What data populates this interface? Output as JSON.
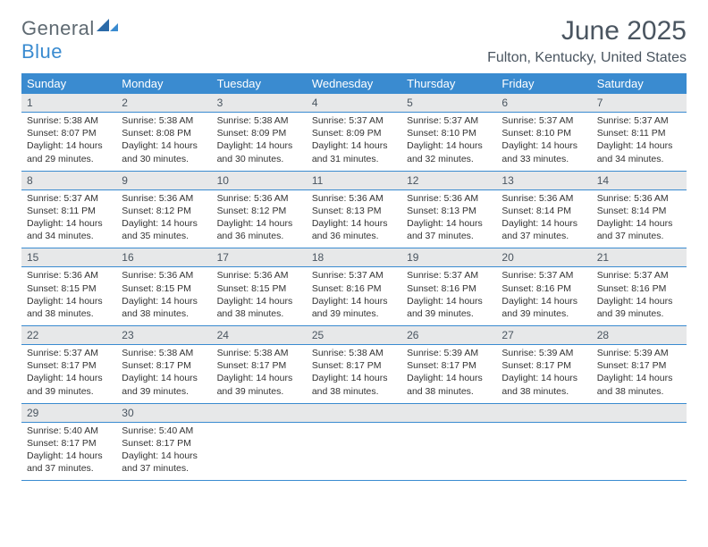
{
  "logo": {
    "word1": "General",
    "word2": "Blue"
  },
  "title": "June 2025",
  "location": "Fulton, Kentucky, United States",
  "colors": {
    "header_bg": "#3a8bd0",
    "header_text": "#ffffff",
    "daynum_bg": "#e7e8e9",
    "border": "#3a8bd0",
    "title_color": "#4a5560",
    "logo_gray": "#5f6a72",
    "logo_blue": "#3a8bd0"
  },
  "weekdays": [
    "Sunday",
    "Monday",
    "Tuesday",
    "Wednesday",
    "Thursday",
    "Friday",
    "Saturday"
  ],
  "weeks": [
    [
      {
        "day": "1",
        "sunrise": "Sunrise: 5:38 AM",
        "sunset": "Sunset: 8:07 PM",
        "daylight": "Daylight: 14 hours and 29 minutes."
      },
      {
        "day": "2",
        "sunrise": "Sunrise: 5:38 AM",
        "sunset": "Sunset: 8:08 PM",
        "daylight": "Daylight: 14 hours and 30 minutes."
      },
      {
        "day": "3",
        "sunrise": "Sunrise: 5:38 AM",
        "sunset": "Sunset: 8:09 PM",
        "daylight": "Daylight: 14 hours and 30 minutes."
      },
      {
        "day": "4",
        "sunrise": "Sunrise: 5:37 AM",
        "sunset": "Sunset: 8:09 PM",
        "daylight": "Daylight: 14 hours and 31 minutes."
      },
      {
        "day": "5",
        "sunrise": "Sunrise: 5:37 AM",
        "sunset": "Sunset: 8:10 PM",
        "daylight": "Daylight: 14 hours and 32 minutes."
      },
      {
        "day": "6",
        "sunrise": "Sunrise: 5:37 AM",
        "sunset": "Sunset: 8:10 PM",
        "daylight": "Daylight: 14 hours and 33 minutes."
      },
      {
        "day": "7",
        "sunrise": "Sunrise: 5:37 AM",
        "sunset": "Sunset: 8:11 PM",
        "daylight": "Daylight: 14 hours and 34 minutes."
      }
    ],
    [
      {
        "day": "8",
        "sunrise": "Sunrise: 5:37 AM",
        "sunset": "Sunset: 8:11 PM",
        "daylight": "Daylight: 14 hours and 34 minutes."
      },
      {
        "day": "9",
        "sunrise": "Sunrise: 5:36 AM",
        "sunset": "Sunset: 8:12 PM",
        "daylight": "Daylight: 14 hours and 35 minutes."
      },
      {
        "day": "10",
        "sunrise": "Sunrise: 5:36 AM",
        "sunset": "Sunset: 8:12 PM",
        "daylight": "Daylight: 14 hours and 36 minutes."
      },
      {
        "day": "11",
        "sunrise": "Sunrise: 5:36 AM",
        "sunset": "Sunset: 8:13 PM",
        "daylight": "Daylight: 14 hours and 36 minutes."
      },
      {
        "day": "12",
        "sunrise": "Sunrise: 5:36 AM",
        "sunset": "Sunset: 8:13 PM",
        "daylight": "Daylight: 14 hours and 37 minutes."
      },
      {
        "day": "13",
        "sunrise": "Sunrise: 5:36 AM",
        "sunset": "Sunset: 8:14 PM",
        "daylight": "Daylight: 14 hours and 37 minutes."
      },
      {
        "day": "14",
        "sunrise": "Sunrise: 5:36 AM",
        "sunset": "Sunset: 8:14 PM",
        "daylight": "Daylight: 14 hours and 37 minutes."
      }
    ],
    [
      {
        "day": "15",
        "sunrise": "Sunrise: 5:36 AM",
        "sunset": "Sunset: 8:15 PM",
        "daylight": "Daylight: 14 hours and 38 minutes."
      },
      {
        "day": "16",
        "sunrise": "Sunrise: 5:36 AM",
        "sunset": "Sunset: 8:15 PM",
        "daylight": "Daylight: 14 hours and 38 minutes."
      },
      {
        "day": "17",
        "sunrise": "Sunrise: 5:36 AM",
        "sunset": "Sunset: 8:15 PM",
        "daylight": "Daylight: 14 hours and 38 minutes."
      },
      {
        "day": "18",
        "sunrise": "Sunrise: 5:37 AM",
        "sunset": "Sunset: 8:16 PM",
        "daylight": "Daylight: 14 hours and 39 minutes."
      },
      {
        "day": "19",
        "sunrise": "Sunrise: 5:37 AM",
        "sunset": "Sunset: 8:16 PM",
        "daylight": "Daylight: 14 hours and 39 minutes."
      },
      {
        "day": "20",
        "sunrise": "Sunrise: 5:37 AM",
        "sunset": "Sunset: 8:16 PM",
        "daylight": "Daylight: 14 hours and 39 minutes."
      },
      {
        "day": "21",
        "sunrise": "Sunrise: 5:37 AM",
        "sunset": "Sunset: 8:16 PM",
        "daylight": "Daylight: 14 hours and 39 minutes."
      }
    ],
    [
      {
        "day": "22",
        "sunrise": "Sunrise: 5:37 AM",
        "sunset": "Sunset: 8:17 PM",
        "daylight": "Daylight: 14 hours and 39 minutes."
      },
      {
        "day": "23",
        "sunrise": "Sunrise: 5:38 AM",
        "sunset": "Sunset: 8:17 PM",
        "daylight": "Daylight: 14 hours and 39 minutes."
      },
      {
        "day": "24",
        "sunrise": "Sunrise: 5:38 AM",
        "sunset": "Sunset: 8:17 PM",
        "daylight": "Daylight: 14 hours and 39 minutes."
      },
      {
        "day": "25",
        "sunrise": "Sunrise: 5:38 AM",
        "sunset": "Sunset: 8:17 PM",
        "daylight": "Daylight: 14 hours and 38 minutes."
      },
      {
        "day": "26",
        "sunrise": "Sunrise: 5:39 AM",
        "sunset": "Sunset: 8:17 PM",
        "daylight": "Daylight: 14 hours and 38 minutes."
      },
      {
        "day": "27",
        "sunrise": "Sunrise: 5:39 AM",
        "sunset": "Sunset: 8:17 PM",
        "daylight": "Daylight: 14 hours and 38 minutes."
      },
      {
        "day": "28",
        "sunrise": "Sunrise: 5:39 AM",
        "sunset": "Sunset: 8:17 PM",
        "daylight": "Daylight: 14 hours and 38 minutes."
      }
    ],
    [
      {
        "day": "29",
        "sunrise": "Sunrise: 5:40 AM",
        "sunset": "Sunset: 8:17 PM",
        "daylight": "Daylight: 14 hours and 37 minutes."
      },
      {
        "day": "30",
        "sunrise": "Sunrise: 5:40 AM",
        "sunset": "Sunset: 8:17 PM",
        "daylight": "Daylight: 14 hours and 37 minutes."
      },
      {
        "day": "",
        "sunrise": "",
        "sunset": "",
        "daylight": ""
      },
      {
        "day": "",
        "sunrise": "",
        "sunset": "",
        "daylight": ""
      },
      {
        "day": "",
        "sunrise": "",
        "sunset": "",
        "daylight": ""
      },
      {
        "day": "",
        "sunrise": "",
        "sunset": "",
        "daylight": ""
      },
      {
        "day": "",
        "sunrise": "",
        "sunset": "",
        "daylight": ""
      }
    ]
  ]
}
